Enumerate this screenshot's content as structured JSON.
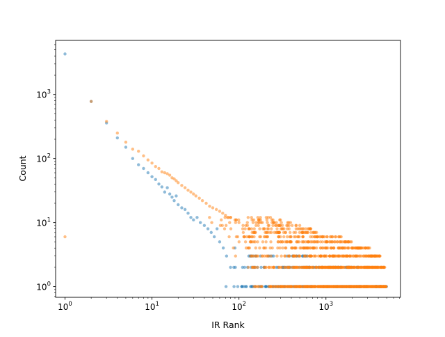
{
  "chart_data": {
    "type": "scatter",
    "title": "",
    "xlabel": "IR Rank",
    "ylabel": "Count",
    "xscale": "log",
    "yscale": "log",
    "xlim": [
      0.78,
      7200
    ],
    "ylim": [
      0.68,
      7000
    ],
    "grid": false,
    "legend": "none",
    "x_ticks": [
      {
        "value": 1,
        "base": "10",
        "exp": "0"
      },
      {
        "value": 10,
        "base": "10",
        "exp": "1"
      },
      {
        "value": 100,
        "base": "10",
        "exp": "2"
      },
      {
        "value": 1000,
        "base": "10",
        "exp": "3"
      }
    ],
    "y_ticks": [
      {
        "value": 1,
        "base": "10",
        "exp": "0"
      },
      {
        "value": 10,
        "base": "10",
        "exp": "1"
      },
      {
        "value": 100,
        "base": "10",
        "exp": "2"
      },
      {
        "value": 1000,
        "base": "10",
        "exp": "3"
      }
    ],
    "series": [
      {
        "color": "#1f77b4",
        "points": [
          [
            1,
            4300
          ],
          [
            2,
            780
          ],
          [
            3,
            360
          ],
          [
            4,
            210
          ],
          [
            5,
            150
          ],
          [
            6,
            100
          ],
          [
            7,
            80
          ],
          [
            8,
            70
          ],
          [
            9,
            60
          ],
          [
            10,
            52
          ],
          [
            11,
            47
          ],
          [
            12,
            40
          ],
          [
            13,
            36
          ],
          [
            14,
            30
          ],
          [
            15,
            35
          ],
          [
            16,
            28
          ],
          [
            17,
            25
          ],
          [
            18,
            22
          ],
          [
            19,
            26
          ],
          [
            20,
            19
          ],
          [
            22,
            17
          ],
          [
            24,
            16
          ],
          [
            26,
            14
          ],
          [
            28,
            12
          ],
          [
            30,
            11
          ],
          [
            33,
            12
          ],
          [
            36,
            10
          ],
          [
            40,
            9
          ],
          [
            44,
            8
          ],
          [
            48,
            7
          ],
          [
            52,
            6
          ],
          [
            56,
            8
          ],
          [
            60,
            5
          ],
          [
            66,
            4
          ],
          [
            72,
            3
          ],
          [
            80,
            2
          ],
          [
            90,
            4
          ],
          [
            110,
            2
          ],
          [
            140,
            3
          ],
          [
            180,
            2
          ],
          [
            250,
            3
          ],
          [
            350,
            2
          ]
        ],
        "bands": [
          {
            "y": 1,
            "x_from": 60,
            "x_to": 5000,
            "count": 220
          },
          {
            "y": 2,
            "x_from": 75,
            "x_to": 2500,
            "count": 60
          },
          {
            "y": 3,
            "x_from": 90,
            "x_to": 800,
            "count": 25
          }
        ]
      },
      {
        "color": "#ff7f0e",
        "points": [
          [
            1,
            6
          ],
          [
            2,
            780
          ],
          [
            3,
            380
          ],
          [
            4,
            250
          ],
          [
            5,
            180
          ],
          [
            6,
            140
          ],
          [
            7,
            130
          ],
          [
            8,
            110
          ],
          [
            9,
            95
          ],
          [
            10,
            85
          ],
          [
            11,
            75
          ],
          [
            12,
            70
          ],
          [
            13,
            62
          ],
          [
            14,
            60
          ],
          [
            15,
            58
          ],
          [
            16,
            55
          ],
          [
            17,
            50
          ],
          [
            18,
            48
          ],
          [
            19,
            45
          ],
          [
            20,
            42
          ],
          [
            22,
            38
          ],
          [
            24,
            35
          ],
          [
            26,
            32
          ],
          [
            28,
            30
          ],
          [
            30,
            28
          ],
          [
            32,
            26
          ],
          [
            35,
            24
          ],
          [
            38,
            22
          ],
          [
            42,
            20
          ],
          [
            46,
            18
          ],
          [
            50,
            17
          ],
          [
            55,
            16
          ],
          [
            60,
            15
          ],
          [
            65,
            14
          ],
          [
            70,
            13
          ],
          [
            80,
            12
          ],
          [
            90,
            11
          ],
          [
            100,
            10
          ],
          [
            120,
            9
          ],
          [
            150,
            8
          ],
          [
            200,
            7
          ],
          [
            300,
            6
          ],
          [
            400,
            5
          ],
          [
            600,
            4
          ]
        ],
        "bands": [
          {
            "y": 1,
            "x_from": 130,
            "x_to": 5000,
            "count": 420
          },
          {
            "y": 2,
            "x_from": 110,
            "x_to": 4800,
            "count": 220
          },
          {
            "y": 3,
            "x_from": 90,
            "x_to": 4200,
            "count": 150
          },
          {
            "y": 4,
            "x_from": 80,
            "x_to": 3200,
            "count": 110
          },
          {
            "y": 5,
            "x_from": 75,
            "x_to": 2000,
            "count": 80
          },
          {
            "y": 6,
            "x_from": 65,
            "x_to": 1500,
            "count": 65
          },
          {
            "y": 7,
            "x_from": 60,
            "x_to": 900,
            "count": 45
          },
          {
            "y": 8,
            "x_from": 55,
            "x_to": 700,
            "count": 35
          },
          {
            "y": 9,
            "x_from": 50,
            "x_to": 500,
            "count": 25
          },
          {
            "y": 10,
            "x_from": 45,
            "x_to": 400,
            "count": 20
          },
          {
            "y": 11,
            "x_from": 45,
            "x_to": 300,
            "count": 15
          },
          {
            "y": 12,
            "x_from": 40,
            "x_to": 250,
            "count": 12
          }
        ]
      }
    ]
  }
}
